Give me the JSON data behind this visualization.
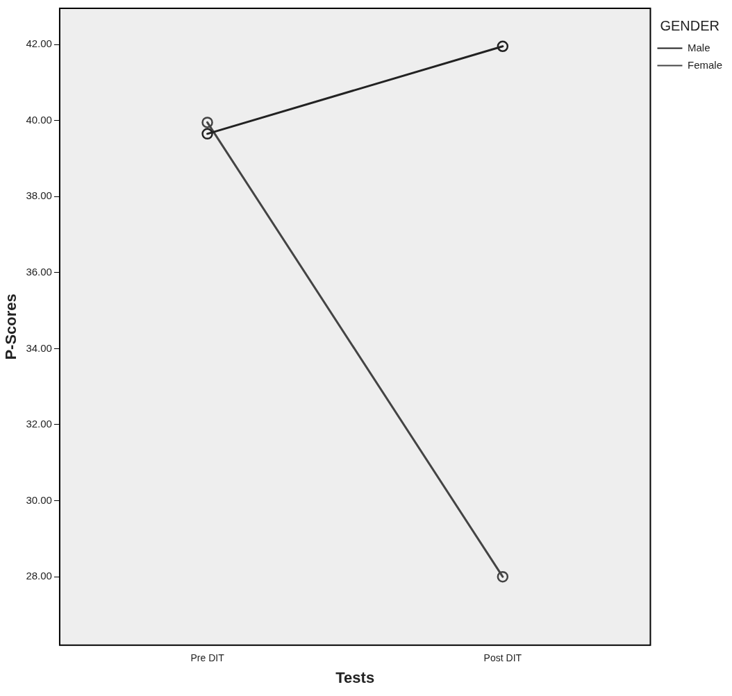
{
  "chart_data": {
    "type": "line",
    "xlabel": "Tests",
    "ylabel": "P-Scores",
    "legend_title": "GENDER",
    "categories": [
      "Pre DIT",
      "Post DIT"
    ],
    "series": [
      {
        "name": "Male",
        "color": "#222222",
        "values": [
          39.65,
          41.95
        ]
      },
      {
        "name": "Female",
        "color": "#444444",
        "values": [
          39.95,
          28.0
        ]
      }
    ],
    "ylim": [
      26.2,
      42.95
    ],
    "yticks": [
      {
        "value": 28,
        "label": "28.00"
      },
      {
        "value": 30,
        "label": "30.00"
      },
      {
        "value": 32,
        "label": "32.00"
      },
      {
        "value": 34,
        "label": "34.00"
      },
      {
        "value": 36,
        "label": "36.00"
      },
      {
        "value": 38,
        "label": "38.00"
      },
      {
        "value": 40,
        "label": "40.00"
      },
      {
        "value": 42,
        "label": "42.00"
      }
    ],
    "marker": "circle",
    "grid": false,
    "legend": "top right"
  }
}
